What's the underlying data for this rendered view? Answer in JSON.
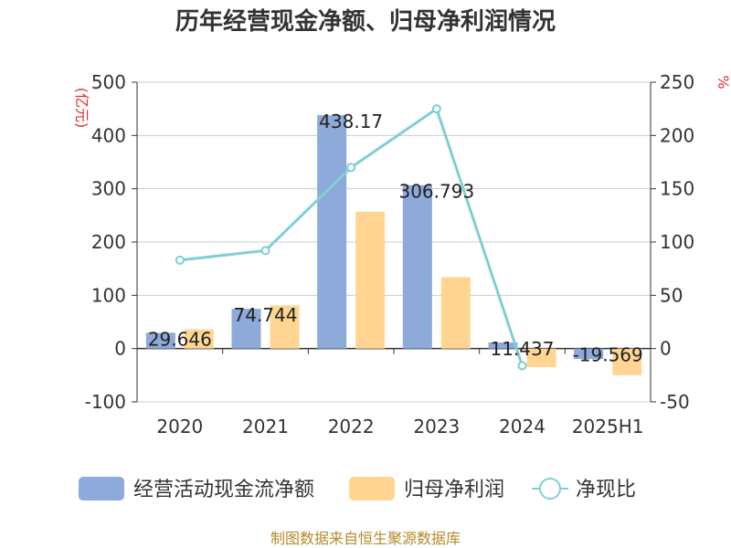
{
  "chart_data": {
    "type": "bar",
    "title": "历年经营现金净额、归母净利润情况",
    "categories": [
      "2020",
      "2021",
      "2022",
      "2023",
      "2024",
      "2025H1"
    ],
    "y_left": {
      "unit_label": "(亿元)",
      "ylim": [
        -100,
        500
      ],
      "ticks": [
        -100,
        0,
        100,
        200,
        300,
        400,
        500
      ]
    },
    "y_right": {
      "unit_label": "%",
      "ylim": [
        -50,
        250
      ],
      "ticks": [
        -50,
        0,
        50,
        100,
        150,
        200,
        250
      ]
    },
    "series": [
      {
        "name": "经营活动现金流净额",
        "kind": "bar",
        "axis": "left",
        "color": "#8eaadb",
        "values": [
          29.646,
          74.744,
          438.17,
          306.793,
          11.437,
          -19.569
        ],
        "labels": [
          "29.646",
          "74.744",
          "438.17",
          "306.793",
          "11.437",
          "-19.569"
        ]
      },
      {
        "name": "归母净利润",
        "kind": "bar",
        "axis": "left",
        "color": "#ffd591",
        "values": [
          36,
          81,
          257,
          134,
          -35,
          -50
        ]
      },
      {
        "name": "净现比",
        "kind": "line",
        "axis": "right",
        "color": "#80cfd5",
        "values": [
          83,
          92,
          170,
          225,
          -16,
          null
        ]
      }
    ],
    "grid": true,
    "legend_position": "bottom"
  },
  "legend": {
    "items": [
      {
        "label": "经营活动现金流净额",
        "marker": "bar",
        "color": "#8eaadb"
      },
      {
        "label": "归母净利润",
        "marker": "bar",
        "color": "#ffd591"
      },
      {
        "label": "净现比",
        "marker": "line-circle",
        "color": "#80cfd5"
      }
    ]
  },
  "source": "制图数据来自恒生聚源数据库"
}
